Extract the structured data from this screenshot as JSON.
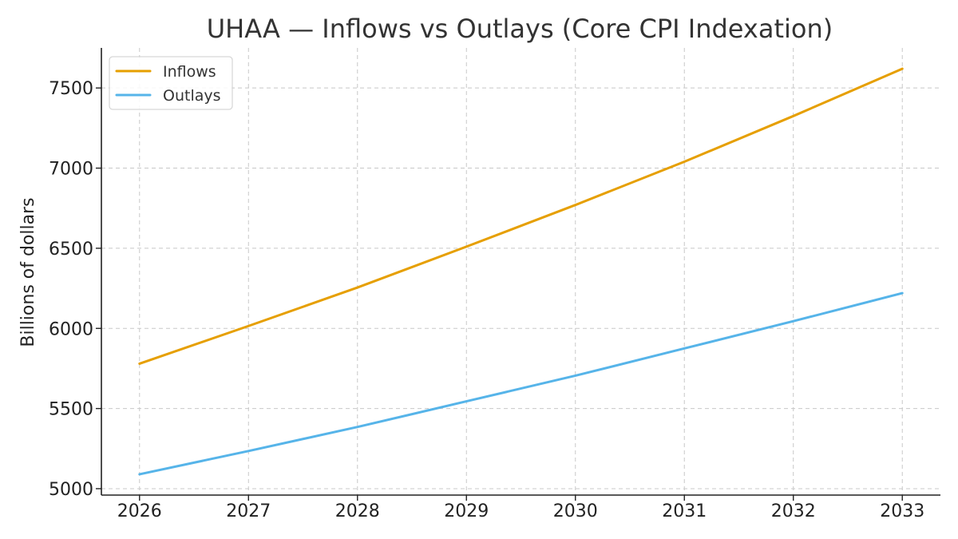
{
  "chart_data": {
    "type": "line",
    "title": "UHAA — Inflows vs Outlays (Core CPI Indexation)",
    "xlabel": "",
    "ylabel": "Billions of dollars",
    "x": [
      2026,
      2027,
      2028,
      2029,
      2030,
      2031,
      2032,
      2033
    ],
    "xticks": [
      "2026",
      "2027",
      "2028",
      "2029",
      "2030",
      "2031",
      "2032",
      "2033"
    ],
    "xlim": [
      2025.65,
      2033.35
    ],
    "yticks": [
      "5000",
      "5500",
      "6000",
      "6500",
      "7000",
      "7500"
    ],
    "ytick_values": [
      5000,
      5500,
      6000,
      6500,
      7000,
      7500
    ],
    "ylim": [
      4960,
      7750
    ],
    "grid": true,
    "legend": "top-left",
    "series": [
      {
        "name": "Inflows",
        "color": "#E69F00",
        "values": [
          5780,
          6015,
          6255,
          6510,
          6770,
          7040,
          7325,
          7620
        ]
      },
      {
        "name": "Outlays",
        "color": "#56B4E9",
        "values": [
          5090,
          5235,
          5385,
          5545,
          5705,
          5875,
          6045,
          6220
        ]
      }
    ]
  }
}
